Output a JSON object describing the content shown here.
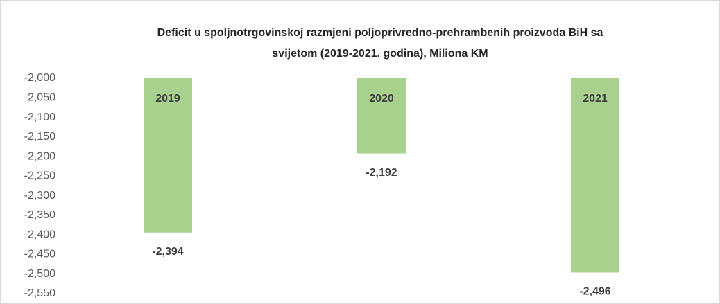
{
  "chart_data": {
    "type": "bar",
    "title": [
      "Deficit u spoljnotrgovinskoj razmjeni poljoprivredno-prehrambenih proizvoda BiH sa",
      "svijetom (2019-2021. godina), Miliona KM"
    ],
    "categories": [
      "2019",
      "2020",
      "2021"
    ],
    "values": [
      -2394,
      -2192,
      -2496
    ],
    "value_labels": [
      "-2,394",
      "-2,192",
      "-2,496"
    ],
    "color": "#a9d18e",
    "ylim": [
      -2550,
      -2000
    ],
    "yticks": [
      {
        "value": -2000,
        "label": "-2,000"
      },
      {
        "value": -2050,
        "label": "-2,050"
      },
      {
        "value": -2100,
        "label": "-2,100"
      },
      {
        "value": -2150,
        "label": "-2,150"
      },
      {
        "value": -2200,
        "label": "-2,200"
      },
      {
        "value": -2250,
        "label": "-2,250"
      },
      {
        "value": -2300,
        "label": "-2,300"
      },
      {
        "value": -2350,
        "label": "-2,350"
      },
      {
        "value": -2400,
        "label": "-2,400"
      },
      {
        "value": -2450,
        "label": "-2,450"
      },
      {
        "value": -2500,
        "label": "-2,500"
      },
      {
        "value": -2550,
        "label": "-2,550"
      }
    ],
    "grid": false
  }
}
